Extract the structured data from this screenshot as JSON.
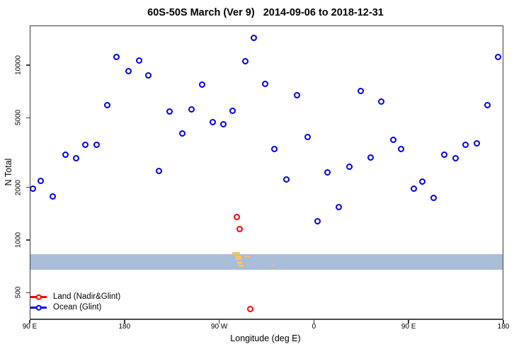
{
  "title": "60S-50S March (Ver 9)   2014-09-06 to 2018-12-31",
  "chart_data": {
    "type": "scatter",
    "title": "60S-50S March (Ver 9)   2014-09-06 to 2018-12-31",
    "xlabel": "Longitude (deg E)",
    "ylabel": "N Total",
    "y_scale": "log",
    "axis_note": "x axis spans 450 degrees eastward: 90E to 180, through 90W and 0, back to 180; lon values below are degrees along that axis starting at 90",
    "x_ticks": [
      {
        "pos": 90,
        "label": "90 E"
      },
      {
        "pos": 180,
        "label": "180"
      },
      {
        "pos": 270,
        "label": "90 W"
      },
      {
        "pos": 360,
        "label": "0"
      },
      {
        "pos": 450,
        "label": "90 E"
      },
      {
        "pos": 540,
        "label": "180"
      }
    ],
    "y_ticks": [
      {
        "value": 500,
        "label": "500"
      },
      {
        "value": 1000,
        "label": "1000"
      },
      {
        "value": 2000,
        "label": "2000"
      },
      {
        "value": 5000,
        "label": "5000"
      },
      {
        "value": 10000,
        "label": "10000"
      }
    ],
    "x_range": [
      90,
      540
    ],
    "y_range": [
      350,
      16800
    ],
    "grid": false,
    "legend_position": "bottom-left-inside",
    "band": {
      "color": "#a9bdd8",
      "n_from": 676,
      "n_to": 830
    },
    "land_marks_color": "#f5c469",
    "land_marks": [
      {
        "lon": 286,
        "n": 835,
        "w": 11,
        "h": 4
      },
      {
        "lon": 288,
        "n": 790,
        "w": 9,
        "h": 6
      },
      {
        "lon": 289.5,
        "n": 745,
        "w": 7,
        "h": 4
      },
      {
        "lon": 290.5,
        "n": 710,
        "w": 8,
        "h": 3
      },
      {
        "lon": 296,
        "n": 805,
        "w": 7,
        "h": 2
      },
      {
        "lon": 321.5,
        "n": 715,
        "w": 4,
        "h": 2
      }
    ],
    "series": [
      {
        "name": "Land (Nadir&Glint)",
        "color": "#ff0000",
        "points": [
          [
            287,
            1350
          ],
          [
            290,
            1150
          ],
          [
            300,
            400
          ]
        ]
      },
      {
        "name": "Ocean (Glint)",
        "color": "#0000ee",
        "points": [
          [
            93,
            1950
          ],
          [
            101,
            2160
          ],
          [
            112,
            1760
          ],
          [
            124,
            3050
          ],
          [
            134,
            2930
          ],
          [
            143,
            3500
          ],
          [
            154,
            3500
          ],
          [
            164,
            5900
          ],
          [
            173,
            11100
          ],
          [
            184,
            9200
          ],
          [
            194,
            10600
          ],
          [
            203,
            8700
          ],
          [
            213,
            2480
          ],
          [
            223,
            5400
          ],
          [
            235,
            4070
          ],
          [
            244,
            5550
          ],
          [
            254,
            7700
          ],
          [
            264,
            4700
          ],
          [
            274,
            4560
          ],
          [
            283,
            5450
          ],
          [
            295,
            10500
          ],
          [
            303,
            14300
          ],
          [
            314,
            7800
          ],
          [
            323,
            3310
          ],
          [
            334,
            2215
          ],
          [
            344,
            6700
          ],
          [
            354,
            3850
          ],
          [
            364,
            1275
          ],
          [
            373,
            2430
          ],
          [
            384,
            1540
          ],
          [
            394,
            2620
          ],
          [
            405,
            7100
          ],
          [
            414,
            2960
          ],
          [
            424,
            6150
          ],
          [
            436,
            3740
          ],
          [
            443,
            3310
          ],
          [
            455,
            1950
          ],
          [
            463,
            2140
          ],
          [
            474,
            1740
          ],
          [
            484,
            3050
          ],
          [
            495,
            2930
          ],
          [
            504,
            3500
          ],
          [
            515,
            3540
          ],
          [
            525,
            5900
          ],
          [
            535,
            11100
          ]
        ]
      }
    ]
  }
}
